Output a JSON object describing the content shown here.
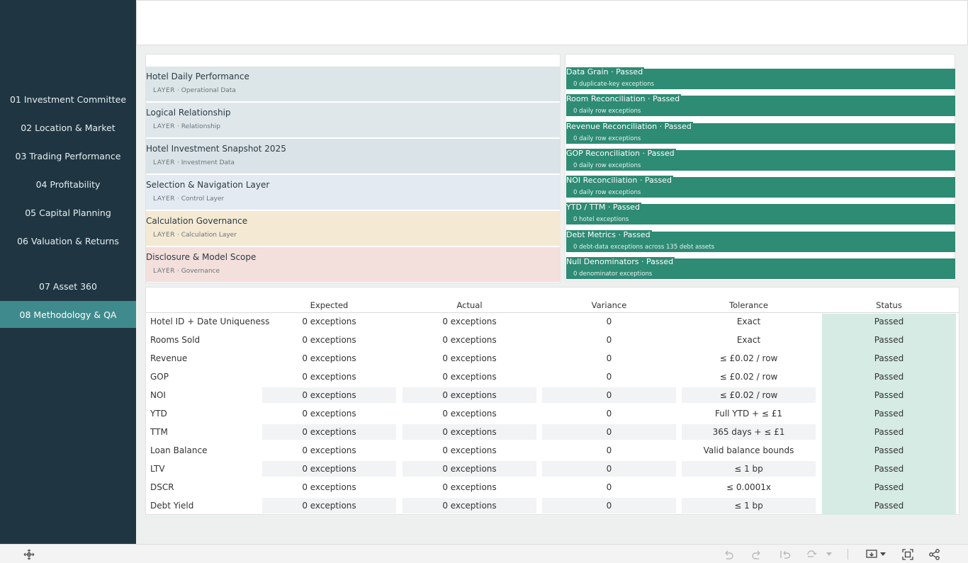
{
  "sidebar": {
    "items": [
      {
        "label": "01 Investment Committee"
      },
      {
        "label": "02 Location & Market"
      },
      {
        "label": "03 Trading Performance"
      },
      {
        "label": "04 Profitability"
      },
      {
        "label": "05 Capital Planning"
      },
      {
        "label": "06 Valuation & Returns"
      },
      {
        "label": "07 Asset 360"
      },
      {
        "label": "08 Methodology & QA"
      }
    ],
    "active_index": 7,
    "colors": {
      "background": "#1f3642",
      "active": "#3f8a8c"
    }
  },
  "layers": [
    {
      "title": "Hotel Daily Performance",
      "tag": "LAYER",
      "sep": "·",
      "type": "Operational Data",
      "color": "#dce5e8"
    },
    {
      "title": "Logical Relationship",
      "tag": "LAYER",
      "sep": "·",
      "type": "Relationship",
      "color": "#dfe7ea"
    },
    {
      "title": "Hotel Investment Snapshot 2025",
      "tag": "LAYER",
      "sep": "·",
      "type": "Investment Data",
      "color": "#dae3e7"
    },
    {
      "title": "Selection & Navigation Layer",
      "tag": "LAYER",
      "sep": "·",
      "type": "Control Layer",
      "color": "#e3eaf1"
    },
    {
      "title": "Calculation Governance",
      "tag": "LAYER",
      "sep": "·",
      "type": "Calculation Layer",
      "color": "#f4e9d3"
    },
    {
      "title": "Disclosure & Model Scope",
      "tag": "LAYER",
      "sep": "·",
      "type": "Governance",
      "color": "#f3dfdb"
    }
  ],
  "checks": [
    {
      "title": "Data Grain",
      "sep": "·",
      "status": "Passed",
      "detail": "0 duplicate-key exceptions"
    },
    {
      "title": "Room Reconciliation",
      "sep": "·",
      "status": "Passed",
      "detail": "0 daily row exceptions"
    },
    {
      "title": "Revenue Reconciliation",
      "sep": "·",
      "status": "Passed",
      "detail": "0 daily row exceptions"
    },
    {
      "title": "GOP Reconciliation",
      "sep": "·",
      "status": "Passed",
      "detail": "0 daily row exceptions"
    },
    {
      "title": "NOI Reconciliation",
      "sep": "·",
      "status": "Passed",
      "detail": "0 daily row exceptions"
    },
    {
      "title": "YTD / TTM",
      "sep": "·",
      "status": "Passed",
      "detail": "0 hotel exceptions"
    },
    {
      "title": "Debt Metrics",
      "sep": "·",
      "status": "Passed",
      "detail": "0 debt-data exceptions across 135 debt assets"
    },
    {
      "title": "Null Denominators",
      "sep": "·",
      "status": "Passed",
      "detail": "0 denominator exceptions"
    }
  ],
  "check_color": "#2e8b74",
  "table": {
    "headers": [
      "Expected",
      "Actual",
      "Variance",
      "Tolerance",
      "Status"
    ],
    "rows": [
      {
        "name": "Hotel ID + Date Uniqueness",
        "expected": "0 exceptions",
        "actual": "0 exceptions",
        "variance": "0",
        "tolerance": "Exact",
        "status": "Passed"
      },
      {
        "name": "Rooms Sold",
        "expected": "0 exceptions",
        "actual": "0 exceptions",
        "variance": "0",
        "tolerance": "Exact",
        "status": "Passed"
      },
      {
        "name": "Revenue",
        "expected": "0 exceptions",
        "actual": "0 exceptions",
        "variance": "0",
        "tolerance": "≤ £0.02 / row",
        "status": "Passed"
      },
      {
        "name": "GOP",
        "expected": "0 exceptions",
        "actual": "0 exceptions",
        "variance": "0",
        "tolerance": "≤ £0.02 / row",
        "status": "Passed"
      },
      {
        "name": "NOI",
        "expected": "0 exceptions",
        "actual": "0 exceptions",
        "variance": "0",
        "tolerance": "≤ £0.02 / row",
        "status": "Passed"
      },
      {
        "name": "YTD",
        "expected": "0 exceptions",
        "actual": "0 exceptions",
        "variance": "0",
        "tolerance": "Full YTD + ≤ £1",
        "status": "Passed"
      },
      {
        "name": "TTM",
        "expected": "0 exceptions",
        "actual": "0 exceptions",
        "variance": "0",
        "tolerance": "365 days + ≤ £1",
        "status": "Passed"
      },
      {
        "name": "Loan Balance",
        "expected": "0 exceptions",
        "actual": "0 exceptions",
        "variance": "0",
        "tolerance": "Valid balance bounds",
        "status": "Passed"
      },
      {
        "name": "LTV",
        "expected": "0 exceptions",
        "actual": "0 exceptions",
        "variance": "0",
        "tolerance": "≤ 1 bp",
        "status": "Passed"
      },
      {
        "name": "DSCR",
        "expected": "0 exceptions",
        "actual": "0 exceptions",
        "variance": "0",
        "tolerance": "≤ 0.0001x",
        "status": "Passed"
      },
      {
        "name": "Debt Yield",
        "expected": "0 exceptions",
        "actual": "0 exceptions",
        "variance": "0",
        "tolerance": "≤ 1 bp",
        "status": "Passed"
      }
    ],
    "alt_rows": [
      4,
      6,
      8,
      10
    ],
    "status_color": "#d5ebe3"
  },
  "toolbar": {
    "icons": [
      "move-icon",
      "undo-icon",
      "redo-icon",
      "revert-icon",
      "refresh-icon",
      "refresh-dropdown-icon",
      "download-icon",
      "download-dropdown-icon",
      "fullscreen-icon",
      "share-icon"
    ]
  }
}
